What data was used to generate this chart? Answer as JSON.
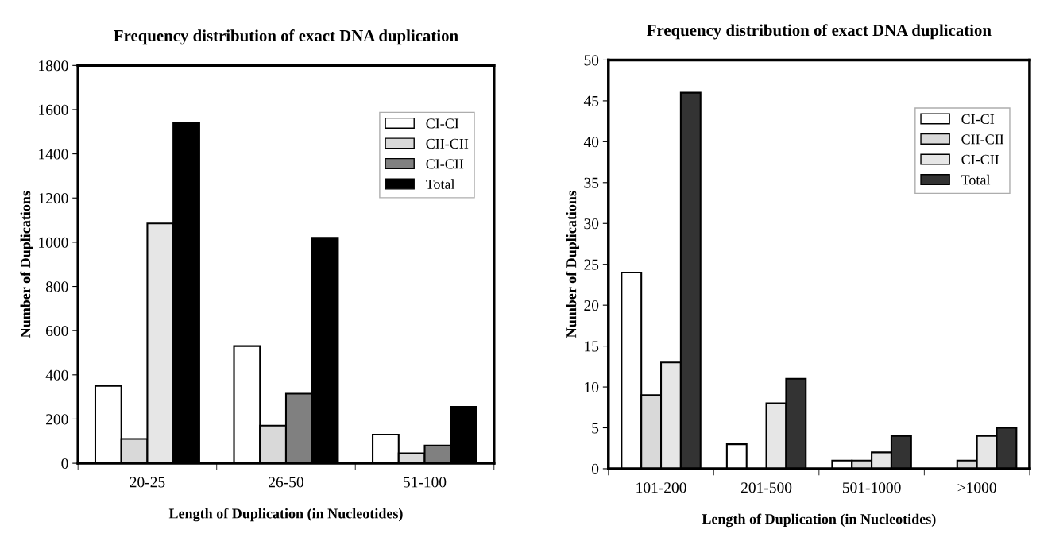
{
  "chart_data": [
    {
      "type": "bar",
      "title": "Frequency distribution of exact DNA duplication",
      "xlabel": "Length of Duplication (in Nucleotides)",
      "ylabel": "Number of Duplications",
      "categories": [
        "20-25",
        "26-50",
        "51-100"
      ],
      "series": [
        {
          "name": "CI-CI",
          "color": "#ffffff",
          "values": [
            350,
            530,
            130
          ]
        },
        {
          "name": "CII-CII",
          "color": "#d9d9d9",
          "values": [
            110,
            170,
            45
          ]
        },
        {
          "name": "CI-CII",
          "color": "#808080",
          "colors": [
            "#e6e6e6",
            "#808080",
            "#808080"
          ],
          "values": [
            1085,
            315,
            80
          ]
        },
        {
          "name": "Total",
          "color": "#000000",
          "values": [
            1540,
            1020,
            255
          ]
        }
      ],
      "ylim": [
        0,
        1800
      ],
      "yticks": [
        0,
        200,
        400,
        600,
        800,
        1000,
        1200,
        1400,
        1600,
        1800
      ],
      "grid": false,
      "legend": "top right"
    },
    {
      "type": "bar",
      "title": "Frequency distribution of exact DNA duplication",
      "xlabel": "Length of Duplication (in Nucleotides)",
      "ylabel": "Number of Duplications",
      "categories": [
        "101-200",
        "201-500",
        "501-1000",
        ">1000"
      ],
      "series": [
        {
          "name": "CI-CI",
          "color": "#ffffff",
          "values": [
            24,
            3,
            1,
            null
          ]
        },
        {
          "name": "CII-CII",
          "color": "#d9d9d9",
          "values": [
            9,
            null,
            1,
            1
          ]
        },
        {
          "name": "CI-CII",
          "color": "#e6e6e6",
          "values": [
            13,
            8,
            2,
            4
          ]
        },
        {
          "name": "Total",
          "color": "#333333",
          "values": [
            46,
            11,
            4,
            5
          ]
        }
      ],
      "ylim": [
        0,
        50
      ],
      "yticks": [
        0,
        5,
        10,
        15,
        20,
        25,
        30,
        35,
        40,
        45,
        50
      ],
      "grid": false,
      "legend": "top right"
    }
  ]
}
